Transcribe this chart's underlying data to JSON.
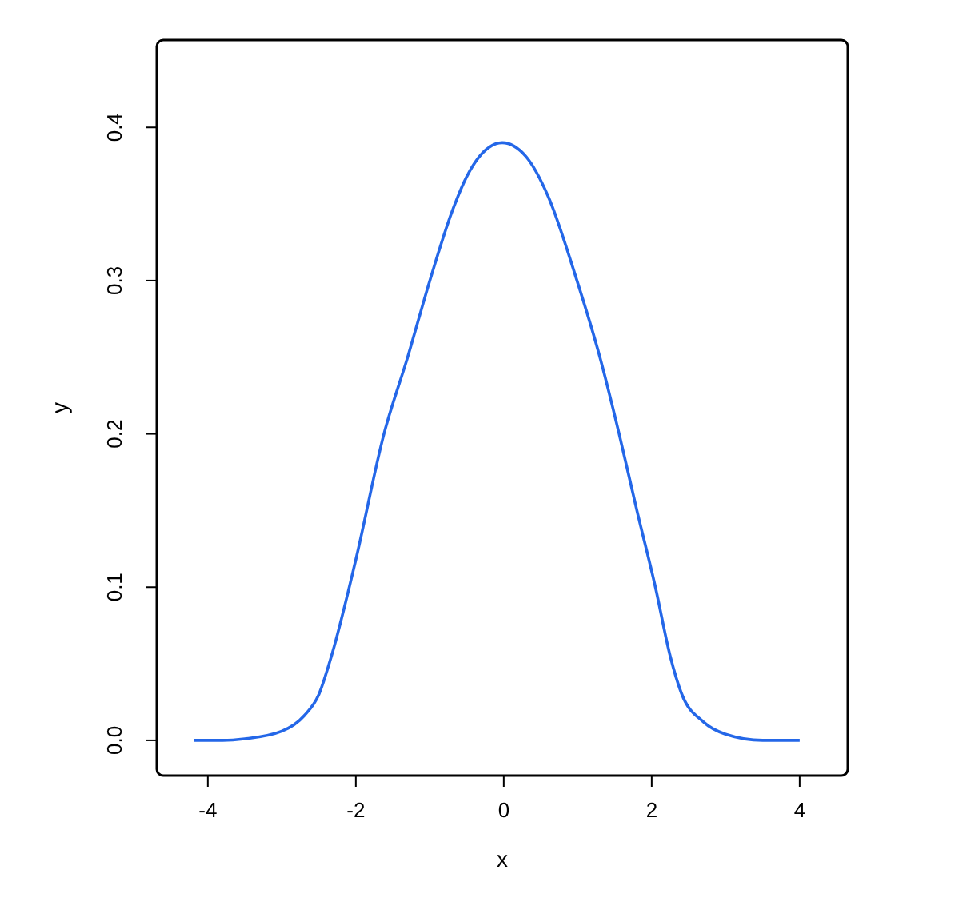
{
  "chart_data": {
    "type": "line",
    "xlabel": "x",
    "ylabel": "y",
    "x": [
      -4.19,
      -3.8,
      -3.5,
      -3.0,
      -2.7,
      -2.5,
      -2.33,
      -2.0,
      -1.62,
      -1.3,
      -1.0,
      -0.7,
      -0.5,
      -0.2,
      -0.02,
      0.3,
      0.6,
      0.99,
      1.3,
      1.56,
      1.8,
      2.05,
      2.25,
      2.4,
      2.7,
      3.0,
      3.5,
      4.0
    ],
    "series": [
      {
        "color": "#2467e8",
        "values": [
          0.0,
          0.0,
          0.001,
          0.006,
          0.016,
          0.03,
          0.055,
          0.118,
          0.2,
          0.25,
          0.3,
          0.345,
          0.368,
          0.387,
          0.39,
          0.381,
          0.355,
          0.3,
          0.25,
          0.2,
          0.15,
          0.1,
          0.055,
          0.031,
          0.012,
          0.004,
          0.0,
          0.0
        ]
      }
    ],
    "xlim": [
      -4.69,
      4.65
    ],
    "ylim": [
      -0.023,
      0.457
    ],
    "xticks": [
      -4,
      -2,
      0,
      2,
      4
    ],
    "yticks": [
      {
        "value": 0,
        "label": "0.0"
      },
      0.1,
      0.2,
      0.3,
      0.4
    ],
    "marker": "none",
    "line_style": "solid"
  }
}
